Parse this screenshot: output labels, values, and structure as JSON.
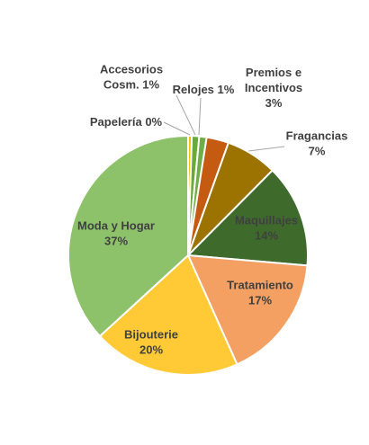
{
  "chart_data": {
    "type": "pie",
    "title": "",
    "slices": [
      {
        "label_lines": [
          "Papelería 0%"
        ],
        "value": 0.5,
        "percent_label": "0%",
        "color": "#F2C200"
      },
      {
        "label_lines": [
          "Accesorios",
          "Cosm. 1%"
        ],
        "value": 1,
        "percent_label": "1%",
        "color": "#6AAA3A"
      },
      {
        "label_lines": [
          "Relojes 1%"
        ],
        "value": 1,
        "percent_label": "1%",
        "color": "#70AD47"
      },
      {
        "label_lines": [
          "Premios e",
          "Incentivos",
          "3%"
        ],
        "value": 3,
        "percent_label": "3%",
        "color": "#C55A11"
      },
      {
        "label_lines": [
          "Fragancias",
          "7%"
        ],
        "value": 7,
        "percent_label": "7%",
        "color": "#9C7200"
      },
      {
        "label_lines": [
          "Maquillajes",
          "14%"
        ],
        "value": 14,
        "percent_label": "14%",
        "color": "#3E6A2C"
      },
      {
        "label_lines": [
          "Tratamiento",
          "17%"
        ],
        "value": 17,
        "percent_label": "17%",
        "color": "#F4A062"
      },
      {
        "label_lines": [
          "Bijouterie",
          "20%"
        ],
        "value": 20,
        "percent_label": "20%",
        "color": "#FFCA36"
      },
      {
        "label_lines": [
          "Moda y Hogar",
          "37%"
        ],
        "value": 37,
        "percent_label": "37%",
        "color": "#8DC16A"
      }
    ],
    "start_angle_deg": 0,
    "direction": "clockwise",
    "legend": "none",
    "label_color": "#404040",
    "slice_border_color": "#FFFFFF"
  }
}
